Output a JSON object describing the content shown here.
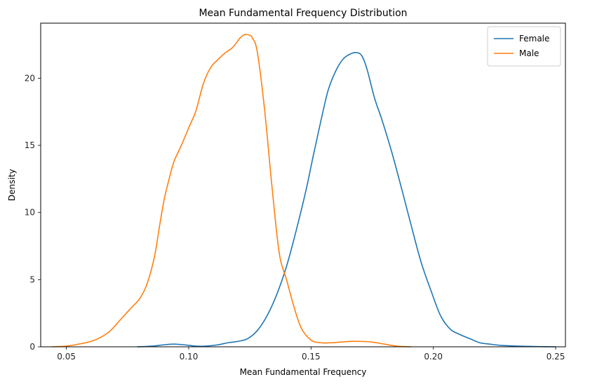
{
  "chart_data": {
    "type": "line",
    "title": "Mean Fundamental Frequency Distribution",
    "xlabel": "Mean Fundamental Frequency",
    "ylabel": "Density",
    "xlim": [
      0.0395,
      0.254
    ],
    "ylim": [
      0,
      24.1
    ],
    "xticks": [
      0.05,
      0.1,
      0.15,
      0.2,
      0.25
    ],
    "xtick_labels": [
      "0.05",
      "0.10",
      "0.15",
      "0.20",
      "0.25"
    ],
    "yticks": [
      0,
      5,
      10,
      15,
      20
    ],
    "ytick_labels": [
      "0",
      "5",
      "10",
      "15",
      "20"
    ],
    "grid": false,
    "legend_position": "top-right",
    "series": [
      {
        "name": "Female",
        "color": "#1f77b4",
        "x": [
          0.079,
          0.085,
          0.09,
          0.094,
          0.098,
          0.103,
          0.107,
          0.112,
          0.116,
          0.12,
          0.124,
          0.128,
          0.132,
          0.136,
          0.14,
          0.144,
          0.148,
          0.151,
          0.154,
          0.157,
          0.16,
          0.163,
          0.166,
          0.169,
          0.171,
          0.173,
          0.176,
          0.179,
          0.183,
          0.187,
          0.191,
          0.195,
          0.199,
          0.203,
          0.207,
          0.211,
          0.215,
          0.219,
          0.223,
          0.228,
          0.235,
          0.242,
          0.25
        ],
        "y": [
          0.0,
          0.05,
          0.15,
          0.2,
          0.15,
          0.05,
          0.05,
          0.15,
          0.3,
          0.4,
          0.6,
          1.2,
          2.3,
          3.9,
          6.0,
          8.7,
          11.7,
          14.3,
          16.8,
          19.1,
          20.5,
          21.4,
          21.8,
          21.9,
          21.6,
          20.6,
          18.5,
          16.9,
          14.5,
          11.8,
          9.0,
          6.3,
          4.2,
          2.3,
          1.3,
          0.9,
          0.6,
          0.3,
          0.2,
          0.1,
          0.05,
          0.02,
          0.0
        ]
      },
      {
        "name": "Male",
        "color": "#ff7f0e",
        "x": [
          0.044,
          0.05,
          0.055,
          0.06,
          0.064,
          0.068,
          0.072,
          0.076,
          0.08,
          0.083,
          0.086,
          0.088,
          0.09,
          0.092,
          0.094,
          0.097,
          0.1,
          0.103,
          0.106,
          0.109,
          0.112,
          0.115,
          0.118,
          0.121,
          0.123,
          0.125,
          0.126,
          0.128,
          0.131,
          0.134,
          0.137,
          0.14,
          0.143,
          0.146,
          0.15,
          0.154,
          0.158,
          0.162,
          0.166,
          0.17,
          0.175,
          0.18,
          0.185,
          0.191
        ],
        "y": [
          0.0,
          0.05,
          0.2,
          0.4,
          0.7,
          1.2,
          2.0,
          2.8,
          3.6,
          4.7,
          6.7,
          8.9,
          11.0,
          12.5,
          13.8,
          15.0,
          16.3,
          17.6,
          19.6,
          20.8,
          21.4,
          21.9,
          22.3,
          23.0,
          23.25,
          23.2,
          23.0,
          22.0,
          17.7,
          12.0,
          7.0,
          5.0,
          3.0,
          1.4,
          0.5,
          0.3,
          0.3,
          0.35,
          0.4,
          0.4,
          0.35,
          0.2,
          0.05,
          0.0
        ]
      }
    ]
  }
}
